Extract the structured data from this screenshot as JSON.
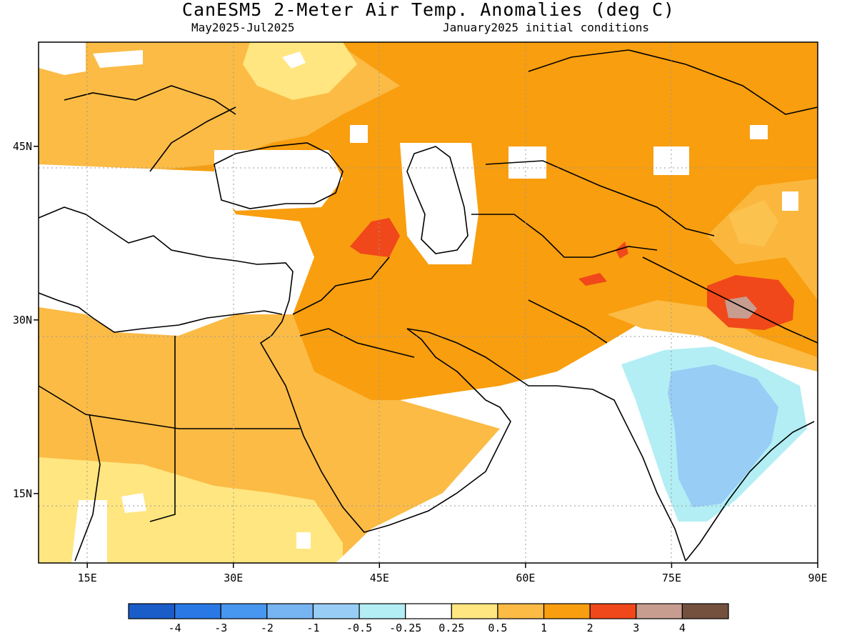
{
  "title": "CanESM5 2-Meter Air Temp. Anomalies (deg C)",
  "period": "May2025-Jul2025",
  "init": "January2025 initial conditions",
  "map": {
    "lon_range": [
      10,
      90
    ],
    "lat_range": [
      9,
      54
    ],
    "lat_labels": [
      "45N",
      "30N",
      "15N"
    ],
    "lat_values": [
      45,
      30,
      15
    ],
    "lon_labels": [
      "15E",
      "30E",
      "45E",
      "60E",
      "75E",
      "90E"
    ],
    "lon_values": [
      15,
      30,
      45,
      60,
      75,
      90
    ],
    "grid": "dotted"
  },
  "legend": {
    "colors": [
      "#1a5cc8",
      "#2a78e6",
      "#4796f0",
      "#76b4f2",
      "#98cdf6",
      "#b2eef4",
      "#ffffff",
      "#ffe680",
      "#fbbb45",
      "#f89e0f",
      "#f0481a",
      "#c79d90",
      "#74503f"
    ],
    "labels": [
      "-4",
      "-3",
      "-2",
      "-1",
      "-0.5",
      "-0.25",
      "0.25",
      "0.5",
      "1",
      "2",
      "3",
      "4"
    ]
  }
}
